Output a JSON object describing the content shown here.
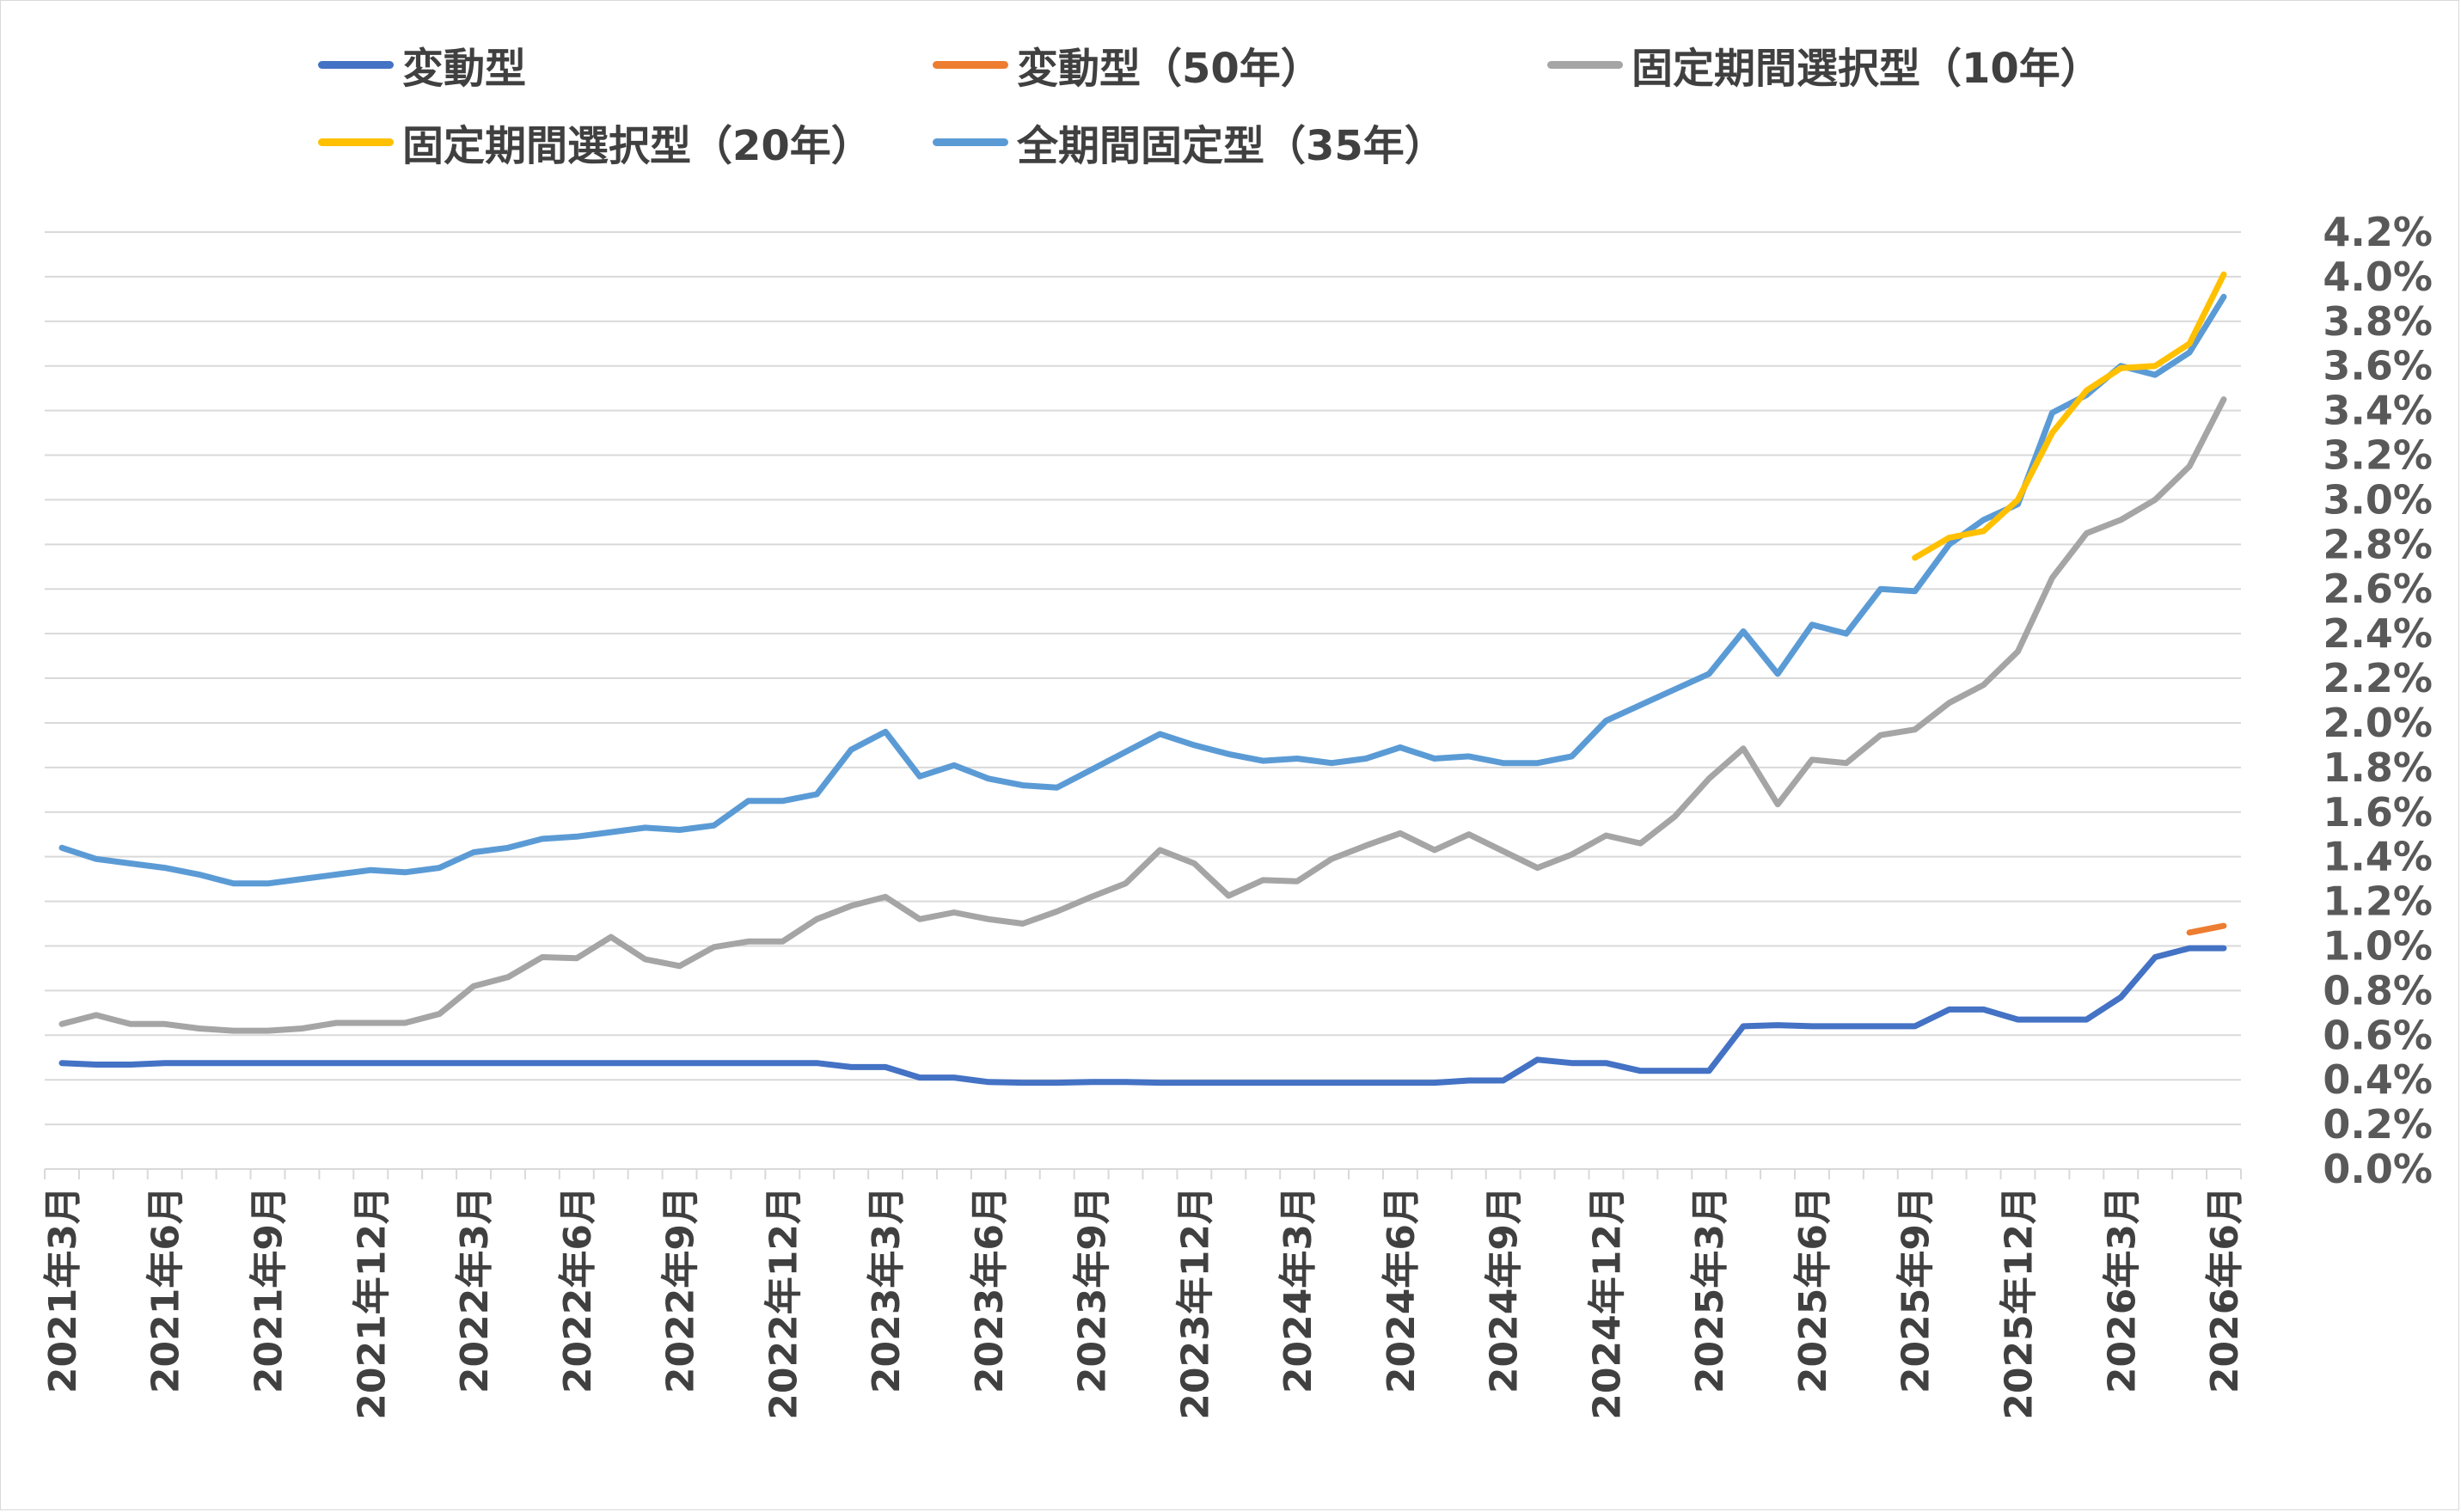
{
  "chart_data": {
    "type": "line",
    "title": "",
    "xlabel": "",
    "ylabel": "",
    "ylim": [
      0,
      4.2
    ],
    "y_ticks": [
      "0.0%",
      "0.2%",
      "0.4%",
      "0.6%",
      "0.8%",
      "1.0%",
      "1.2%",
      "1.4%",
      "1.6%",
      "1.8%",
      "2.0%",
      "2.2%",
      "2.4%",
      "2.6%",
      "2.8%",
      "3.0%",
      "3.2%",
      "3.4%",
      "3.6%",
      "3.8%",
      "4.0%",
      "4.2%"
    ],
    "y_axis_side": "right",
    "grid": true,
    "legend_position": "top",
    "x": [
      "2021年3月",
      "2021年4月",
      "2021年5月",
      "2021年6月",
      "2021年7月",
      "2021年8月",
      "2021年9月",
      "2021年10月",
      "2021年11月",
      "2021年12月",
      "2022年1月",
      "2022年2月",
      "2022年3月",
      "2022年4月",
      "2022年5月",
      "2022年6月",
      "2022年7月",
      "2022年8月",
      "2022年9月",
      "2022年10月",
      "2022年11月",
      "2022年12月",
      "2023年1月",
      "2023年2月",
      "2023年3月",
      "2023年4月",
      "2023年5月",
      "2023年6月",
      "2023年7月",
      "2023年8月",
      "2023年9月",
      "2023年10月",
      "2023年11月",
      "2023年12月",
      "2024年1月",
      "2024年2月",
      "2024年3月",
      "2024年4月",
      "2024年5月",
      "2024年6月",
      "2024年7月",
      "2024年8月",
      "2024年9月",
      "2024年10月",
      "2024年11月",
      "2024年12月",
      "2025年1月",
      "2025年2月",
      "2025年3月",
      "2025年4月",
      "2025年5月",
      "2025年6月",
      "2025年7月",
      "2025年8月",
      "2025年9月",
      "2025年10月",
      "2025年11月",
      "2025年12月",
      "2026年1月",
      "2026年2月",
      "2026年3月",
      "2026年4月",
      "2026年5月",
      "2026年6月"
    ],
    "x_tick_labels": [
      "2021年3月",
      "2021年6月",
      "2021年9月",
      "2021年12月",
      "2022年3月",
      "2022年6月",
      "2022年9月",
      "2022年12月",
      "2023年3月",
      "2023年6月",
      "2023年9月",
      "2023年12月",
      "2024年3月",
      "2024年6月",
      "2024年9月",
      "2024年12月",
      "2025年3月",
      "2025年6月",
      "2025年9月",
      "2025年12月",
      "2026年3月",
      "2026年6月"
    ],
    "series": [
      {
        "name": "変動型",
        "color": "#4472c4",
        "values": [
          0.475,
          0.468,
          0.468,
          0.475,
          0.475,
          0.475,
          0.475,
          0.475,
          0.475,
          0.475,
          0.475,
          0.475,
          0.475,
          0.475,
          0.475,
          0.475,
          0.475,
          0.475,
          0.475,
          0.475,
          0.475,
          0.475,
          0.475,
          0.457,
          0.457,
          0.41,
          0.41,
          0.39,
          0.387,
          0.387,
          0.39,
          0.39,
          0.387,
          0.387,
          0.387,
          0.387,
          0.387,
          0.387,
          0.387,
          0.387,
          0.387,
          0.397,
          0.397,
          0.49,
          0.475,
          0.475,
          0.44,
          0.44,
          0.44,
          0.64,
          0.645,
          0.64,
          0.64,
          0.64,
          0.64,
          0.715,
          0.715,
          0.67,
          0.67,
          0.67,
          0.77,
          0.95,
          0.99,
          0.99
        ]
      },
      {
        "name": "変動型（50年）",
        "color": "#ed7d31",
        "values": [
          null,
          null,
          null,
          null,
          null,
          null,
          null,
          null,
          null,
          null,
          null,
          null,
          null,
          null,
          null,
          null,
          null,
          null,
          null,
          null,
          null,
          null,
          null,
          null,
          null,
          null,
          null,
          null,
          null,
          null,
          null,
          null,
          null,
          null,
          null,
          null,
          null,
          null,
          null,
          null,
          null,
          null,
          null,
          null,
          null,
          null,
          null,
          null,
          null,
          null,
          null,
          null,
          null,
          null,
          null,
          null,
          null,
          null,
          null,
          null,
          null,
          null,
          1.06,
          1.09
        ]
      },
      {
        "name": "固定期間選択型（10年）",
        "color": "#a5a5a5",
        "values": [
          0.65,
          0.69,
          0.65,
          0.65,
          0.63,
          0.62,
          0.62,
          0.63,
          0.655,
          0.655,
          0.655,
          0.695,
          0.82,
          0.86,
          0.95,
          0.945,
          1.04,
          0.94,
          0.91,
          0.995,
          1.02,
          1.02,
          1.12,
          1.18,
          1.22,
          1.12,
          1.15,
          1.12,
          1.1,
          1.155,
          1.22,
          1.28,
          1.43,
          1.37,
          1.225,
          1.295,
          1.29,
          1.39,
          1.45,
          1.505,
          1.43,
          1.5,
          1.425,
          1.35,
          1.41,
          1.495,
          1.46,
          1.58,
          1.75,
          1.885,
          1.635,
          1.835,
          1.82,
          1.945,
          1.97,
          2.09,
          2.17,
          2.32,
          2.65,
          2.85,
          2.91,
          3.0,
          3.15,
          3.45
        ]
      },
      {
        "name": "固定期間選択型（20年）",
        "color": "#ffc000",
        "values": [
          null,
          null,
          null,
          null,
          null,
          null,
          null,
          null,
          null,
          null,
          null,
          null,
          null,
          null,
          null,
          null,
          null,
          null,
          null,
          null,
          null,
          null,
          null,
          null,
          null,
          null,
          null,
          null,
          null,
          null,
          null,
          null,
          null,
          null,
          null,
          null,
          null,
          null,
          null,
          null,
          null,
          null,
          null,
          null,
          null,
          null,
          null,
          null,
          null,
          null,
          null,
          null,
          null,
          null,
          2.74,
          2.83,
          2.86,
          3.0,
          3.3,
          3.49,
          3.59,
          3.6,
          3.7,
          4.01
        ]
      },
      {
        "name": "全期間固定型（35年）",
        "color": "#5b9bd5",
        "values": [
          1.44,
          1.39,
          1.37,
          1.35,
          1.32,
          1.28,
          1.28,
          1.3,
          1.32,
          1.34,
          1.33,
          1.35,
          1.42,
          1.44,
          1.48,
          1.49,
          1.51,
          1.53,
          1.52,
          1.54,
          1.65,
          1.65,
          1.68,
          1.88,
          1.96,
          1.76,
          1.81,
          1.75,
          1.72,
          1.71,
          1.79,
          1.87,
          1.95,
          1.9,
          1.86,
          1.83,
          1.84,
          1.82,
          1.84,
          1.89,
          1.84,
          1.85,
          1.82,
          1.82,
          1.85,
          2.01,
          2.08,
          2.15,
          2.22,
          2.41,
          2.22,
          2.44,
          2.4,
          2.6,
          2.59,
          2.8,
          2.91,
          2.98,
          3.39,
          3.47,
          3.6,
          3.56,
          3.66,
          3.91
        ]
      }
    ]
  }
}
